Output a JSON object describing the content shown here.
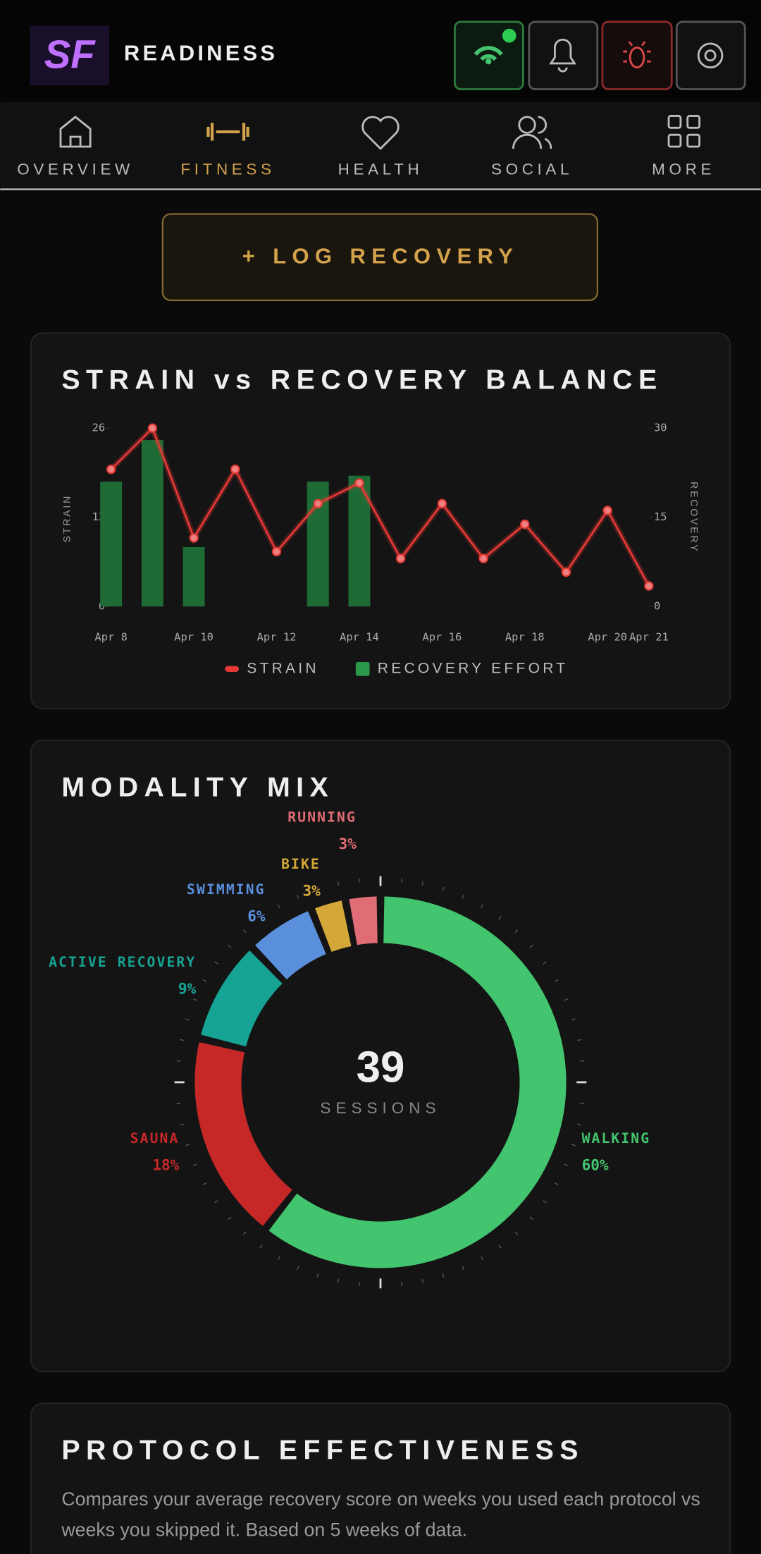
{
  "header": {
    "title": "READINESS",
    "logo": "SF"
  },
  "nav": {
    "items": [
      "OVERVIEW",
      "FITNESS",
      "HEALTH",
      "SOCIAL",
      "MORE"
    ],
    "active": 1
  },
  "log_button": "+ LOG RECOVERY",
  "chart_data": [
    {
      "type": "bar-line",
      "title": "STRAIN vs RECOVERY BALANCE",
      "categories": [
        "Apr 8",
        null,
        "Apr 10",
        null,
        "Apr 12",
        null,
        "Apr 14",
        null,
        "Apr 16",
        null,
        "Apr 18",
        null,
        "Apr 20",
        "Apr 21"
      ],
      "ylabel": "STRAIN",
      "y2label": "RECOVERY",
      "ylim": [
        0,
        26
      ],
      "yticks": [
        0,
        13,
        26
      ],
      "y2lim": [
        0,
        30
      ],
      "y2ticks": [
        0,
        15,
        30
      ],
      "series": [
        {
          "name": "STRAIN",
          "type": "line",
          "color": "#e53935",
          "values": [
            20,
            26,
            10,
            20,
            8,
            15,
            18,
            7,
            15,
            7,
            12,
            5,
            14,
            3
          ]
        },
        {
          "name": "RECOVERY EFFORT",
          "type": "bar",
          "axis": "y2",
          "color": "#1f6b35",
          "values": [
            21,
            28,
            10,
            null,
            null,
            21,
            22,
            null,
            null,
            null,
            null,
            null,
            null,
            null
          ]
        }
      ]
    },
    {
      "type": "donut",
      "title": "MODALITY MIX",
      "center_value": 39,
      "center_label": "SESSIONS",
      "categories": [
        "WALKING",
        "SAUNA",
        "ACTIVE RECOVERY",
        "SWIMMING",
        "BIKE",
        "RUNNING"
      ],
      "values": [
        60,
        18,
        9,
        6,
        3,
        3
      ],
      "value_labels": [
        "60%",
        "18%",
        "9%",
        "6%",
        "3%",
        "3%"
      ],
      "colors": [
        "#43c46e",
        "#c62828",
        "#16a394",
        "#5a8fdc",
        "#d4a838",
        "#e06c75"
      ]
    }
  ],
  "protocol": {
    "title": "PROTOCOL EFFECTIVENESS",
    "description": [
      "Compares your average recovery score on weeks you used each protocol vs",
      "weeks you skipped it. Based on 5 weeks of data."
    ]
  }
}
